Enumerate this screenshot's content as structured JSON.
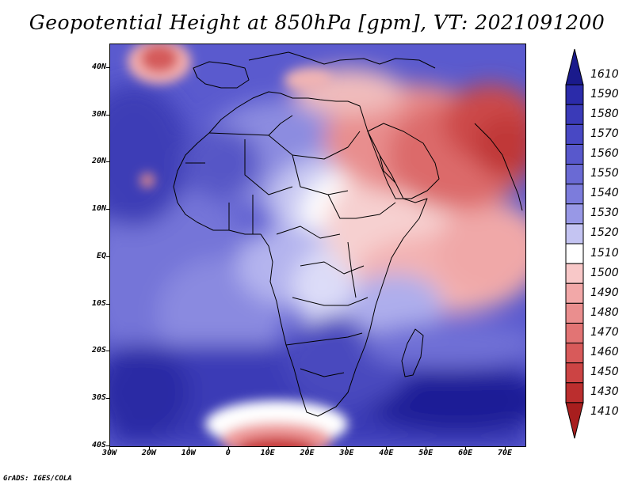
{
  "title": "Geopotential Height at 850hPa [gpm], VT: 2021091200",
  "credit": "GrADS: IGES/COLA",
  "map": {
    "lat_labels": [
      "40N",
      "30N",
      "20N",
      "10N",
      "EQ",
      "10S",
      "20S",
      "30S",
      "40S"
    ],
    "lat_values": [
      40,
      30,
      20,
      10,
      0,
      -10,
      -20,
      -30,
      -40
    ],
    "lon_labels": [
      "30W",
      "20W",
      "10W",
      "0",
      "10E",
      "20E",
      "30E",
      "40E",
      "50E",
      "60E",
      "70E"
    ],
    "lon_values": [
      -30,
      -20,
      -10,
      0,
      10,
      20,
      30,
      40,
      50,
      60,
      70
    ],
    "lon_range": [
      -30,
      75
    ],
    "lat_range": [
      -40,
      45
    ]
  },
  "colorbar": {
    "levels": [
      "1610",
      "1590",
      "1580",
      "1570",
      "1560",
      "1550",
      "1540",
      "1530",
      "1520",
      "1510",
      "1500",
      "1490",
      "1480",
      "1470",
      "1460",
      "1450",
      "1430",
      "1410"
    ],
    "colors": [
      "#1a1a8c",
      "#2b2baa",
      "#3a3ab8",
      "#4848c4",
      "#5858cc",
      "#6a6ad4",
      "#7c7cdc",
      "#9898e6",
      "#c4c4f2",
      "#ffffff",
      "#f8c8c8",
      "#f2a8a8",
      "#ea8e8e",
      "#e27474",
      "#d85a5a",
      "#cc4444",
      "#bb2e2e",
      "#a81e1e"
    ]
  }
}
